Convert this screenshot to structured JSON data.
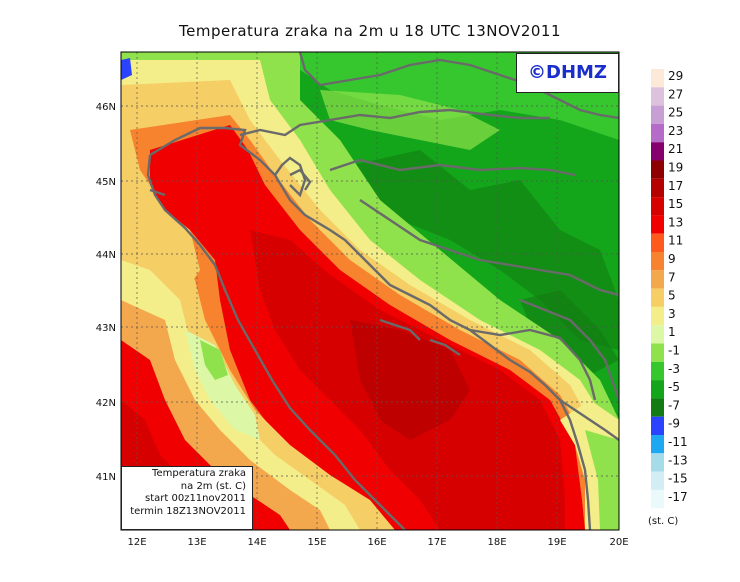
{
  "title": "Temperatura zraka na 2m u 18 UTC 13NOV2011",
  "brand": "©DHMZ",
  "info_box": {
    "line1": "Temperatura zraka",
    "line2": "na 2m (st. C)",
    "line3": "start 00z11nov2011",
    "line4": "termin 18Z13NOV2011"
  },
  "x_ticks": [
    "12E",
    "13E",
    "14E",
    "15E",
    "16E",
    "17E",
    "18E",
    "19E",
    "20E"
  ],
  "y_ticks": [
    "46N",
    "45N",
    "44N",
    "43N",
    "42N",
    "41N"
  ],
  "unit": "(st. C)",
  "legend": [
    {
      "value": "29",
      "color": "#fde9d8"
    },
    {
      "value": "27",
      "color": "#dcc2dc"
    },
    {
      "value": "25",
      "color": "#c89fd4"
    },
    {
      "value": "23",
      "color": "#b56cc9"
    },
    {
      "value": "21",
      "color": "#86006d"
    },
    {
      "value": "19",
      "color": "#8e0000"
    },
    {
      "value": "17",
      "color": "#b50000"
    },
    {
      "value": "15",
      "color": "#d60000"
    },
    {
      "value": "13",
      "color": "#f00000"
    },
    {
      "value": "11",
      "color": "#ff5a1e"
    },
    {
      "value": "9",
      "color": "#f7832e"
    },
    {
      "value": "7",
      "color": "#f4a84e"
    },
    {
      "value": "5",
      "color": "#f6ce66"
    },
    {
      "value": "3",
      "color": "#f4ee8a"
    },
    {
      "value": "1",
      "color": "#dcf7a6"
    },
    {
      "value": "-1",
      "color": "#8fe24c"
    },
    {
      "value": "-3",
      "color": "#36c72e"
    },
    {
      "value": "-5",
      "color": "#13a51a"
    },
    {
      "value": "-7",
      "color": "#127c13"
    },
    {
      "value": "-9",
      "color": "#2b43ff"
    },
    {
      "value": "-11",
      "color": "#1ea8f2"
    },
    {
      "value": "-13",
      "color": "#a6dcea"
    },
    {
      "value": "-15",
      "color": "#d2eef4"
    },
    {
      "value": "-17",
      "color": "#eafafb"
    }
  ]
}
